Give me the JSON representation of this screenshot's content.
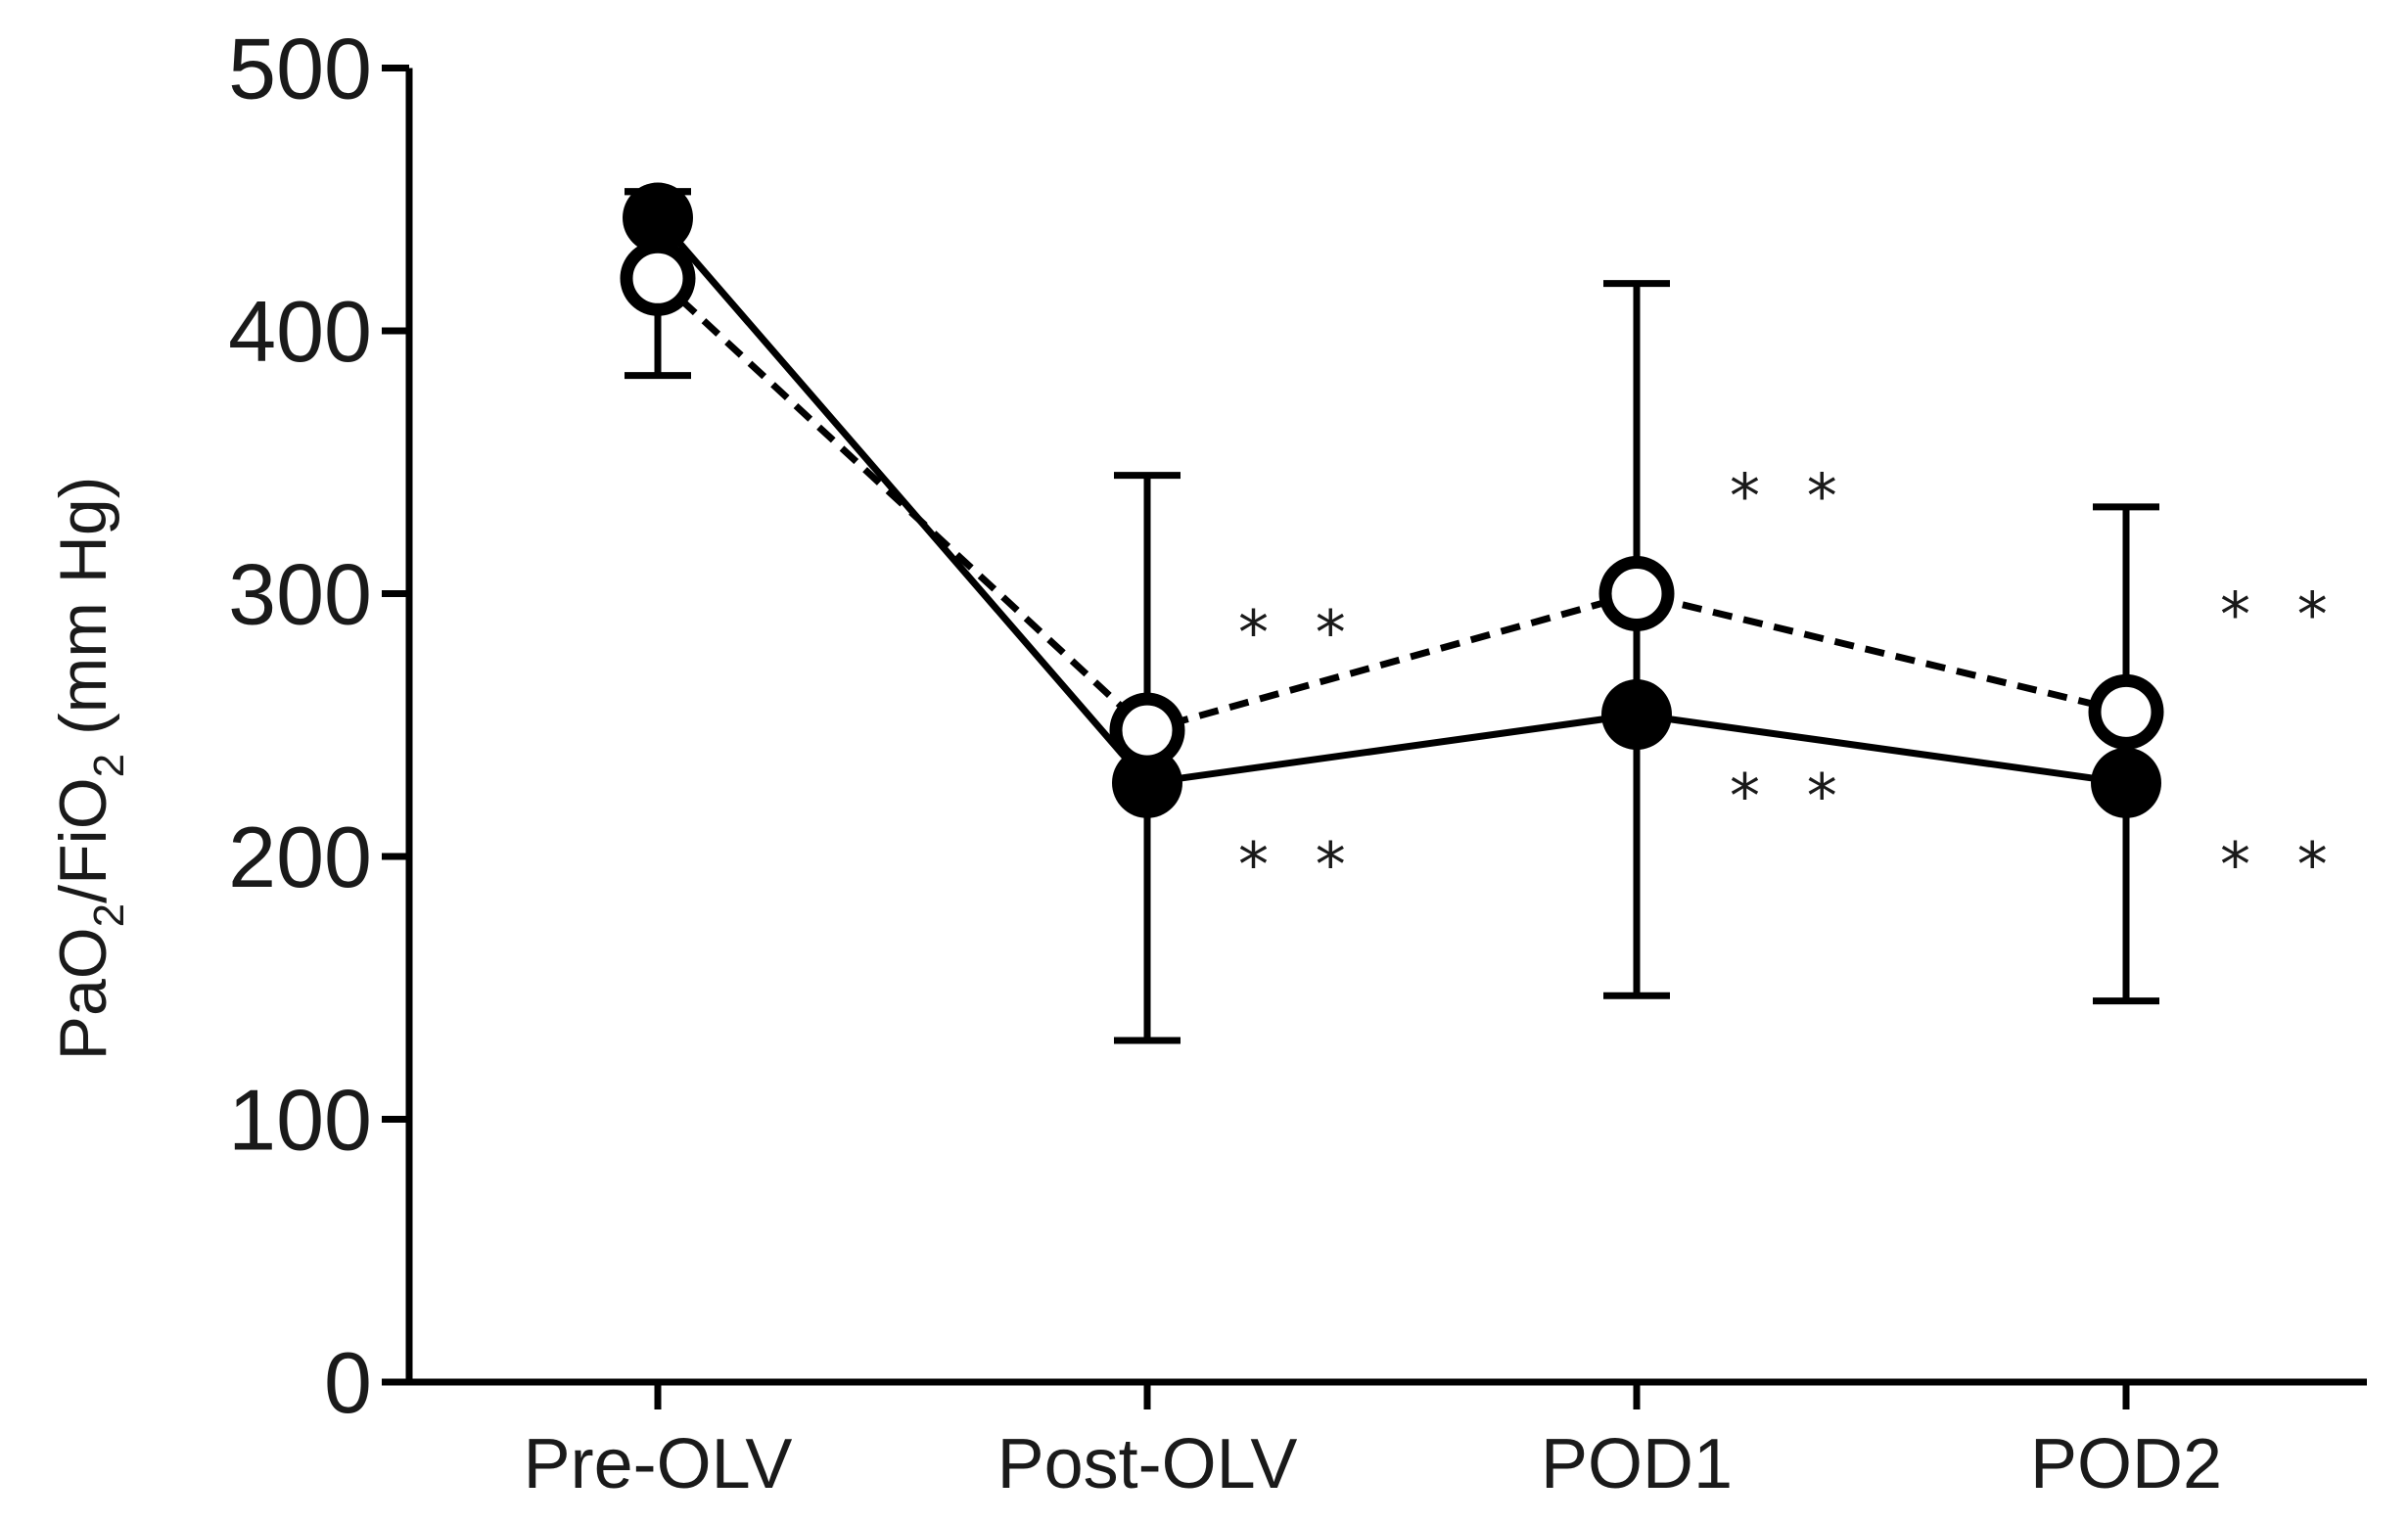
{
  "chart_data": {
    "type": "line",
    "categories": [
      "Pre-OLV",
      "Post-OLV",
      "POD1",
      "POD2"
    ],
    "ylabel": {
      "main": "PaO",
      "sub1": "2",
      "mid": "/FiO",
      "sub2": "2",
      "unit": " (mm Hg)"
    },
    "ylim": [
      0,
      500
    ],
    "yticks": [
      0,
      100,
      200,
      300,
      400,
      500
    ],
    "grid": false,
    "series": [
      {
        "marker": "filled-circle",
        "line": "solid",
        "values": [
          443,
          228,
          254,
          228
        ],
        "err_lower": [
          443,
          130,
          147,
          145
        ],
        "err_upper": [
          453,
          345,
          418,
          333
        ],
        "annotations": [
          "",
          "* *",
          "* *",
          "* *"
        ]
      },
      {
        "marker": "open-circle",
        "line": "dashed",
        "values": [
          420,
          248,
          300,
          255
        ],
        "err_lower": [
          383,
          248,
          300,
          255
        ],
        "err_upper": [
          453,
          248,
          300,
          255
        ],
        "annotations": [
          "",
          "* *",
          "* *",
          "* *"
        ]
      }
    ],
    "colors": {
      "ink": "#000000",
      "text": "#1a1a1a",
      "background": "#ffffff"
    }
  }
}
